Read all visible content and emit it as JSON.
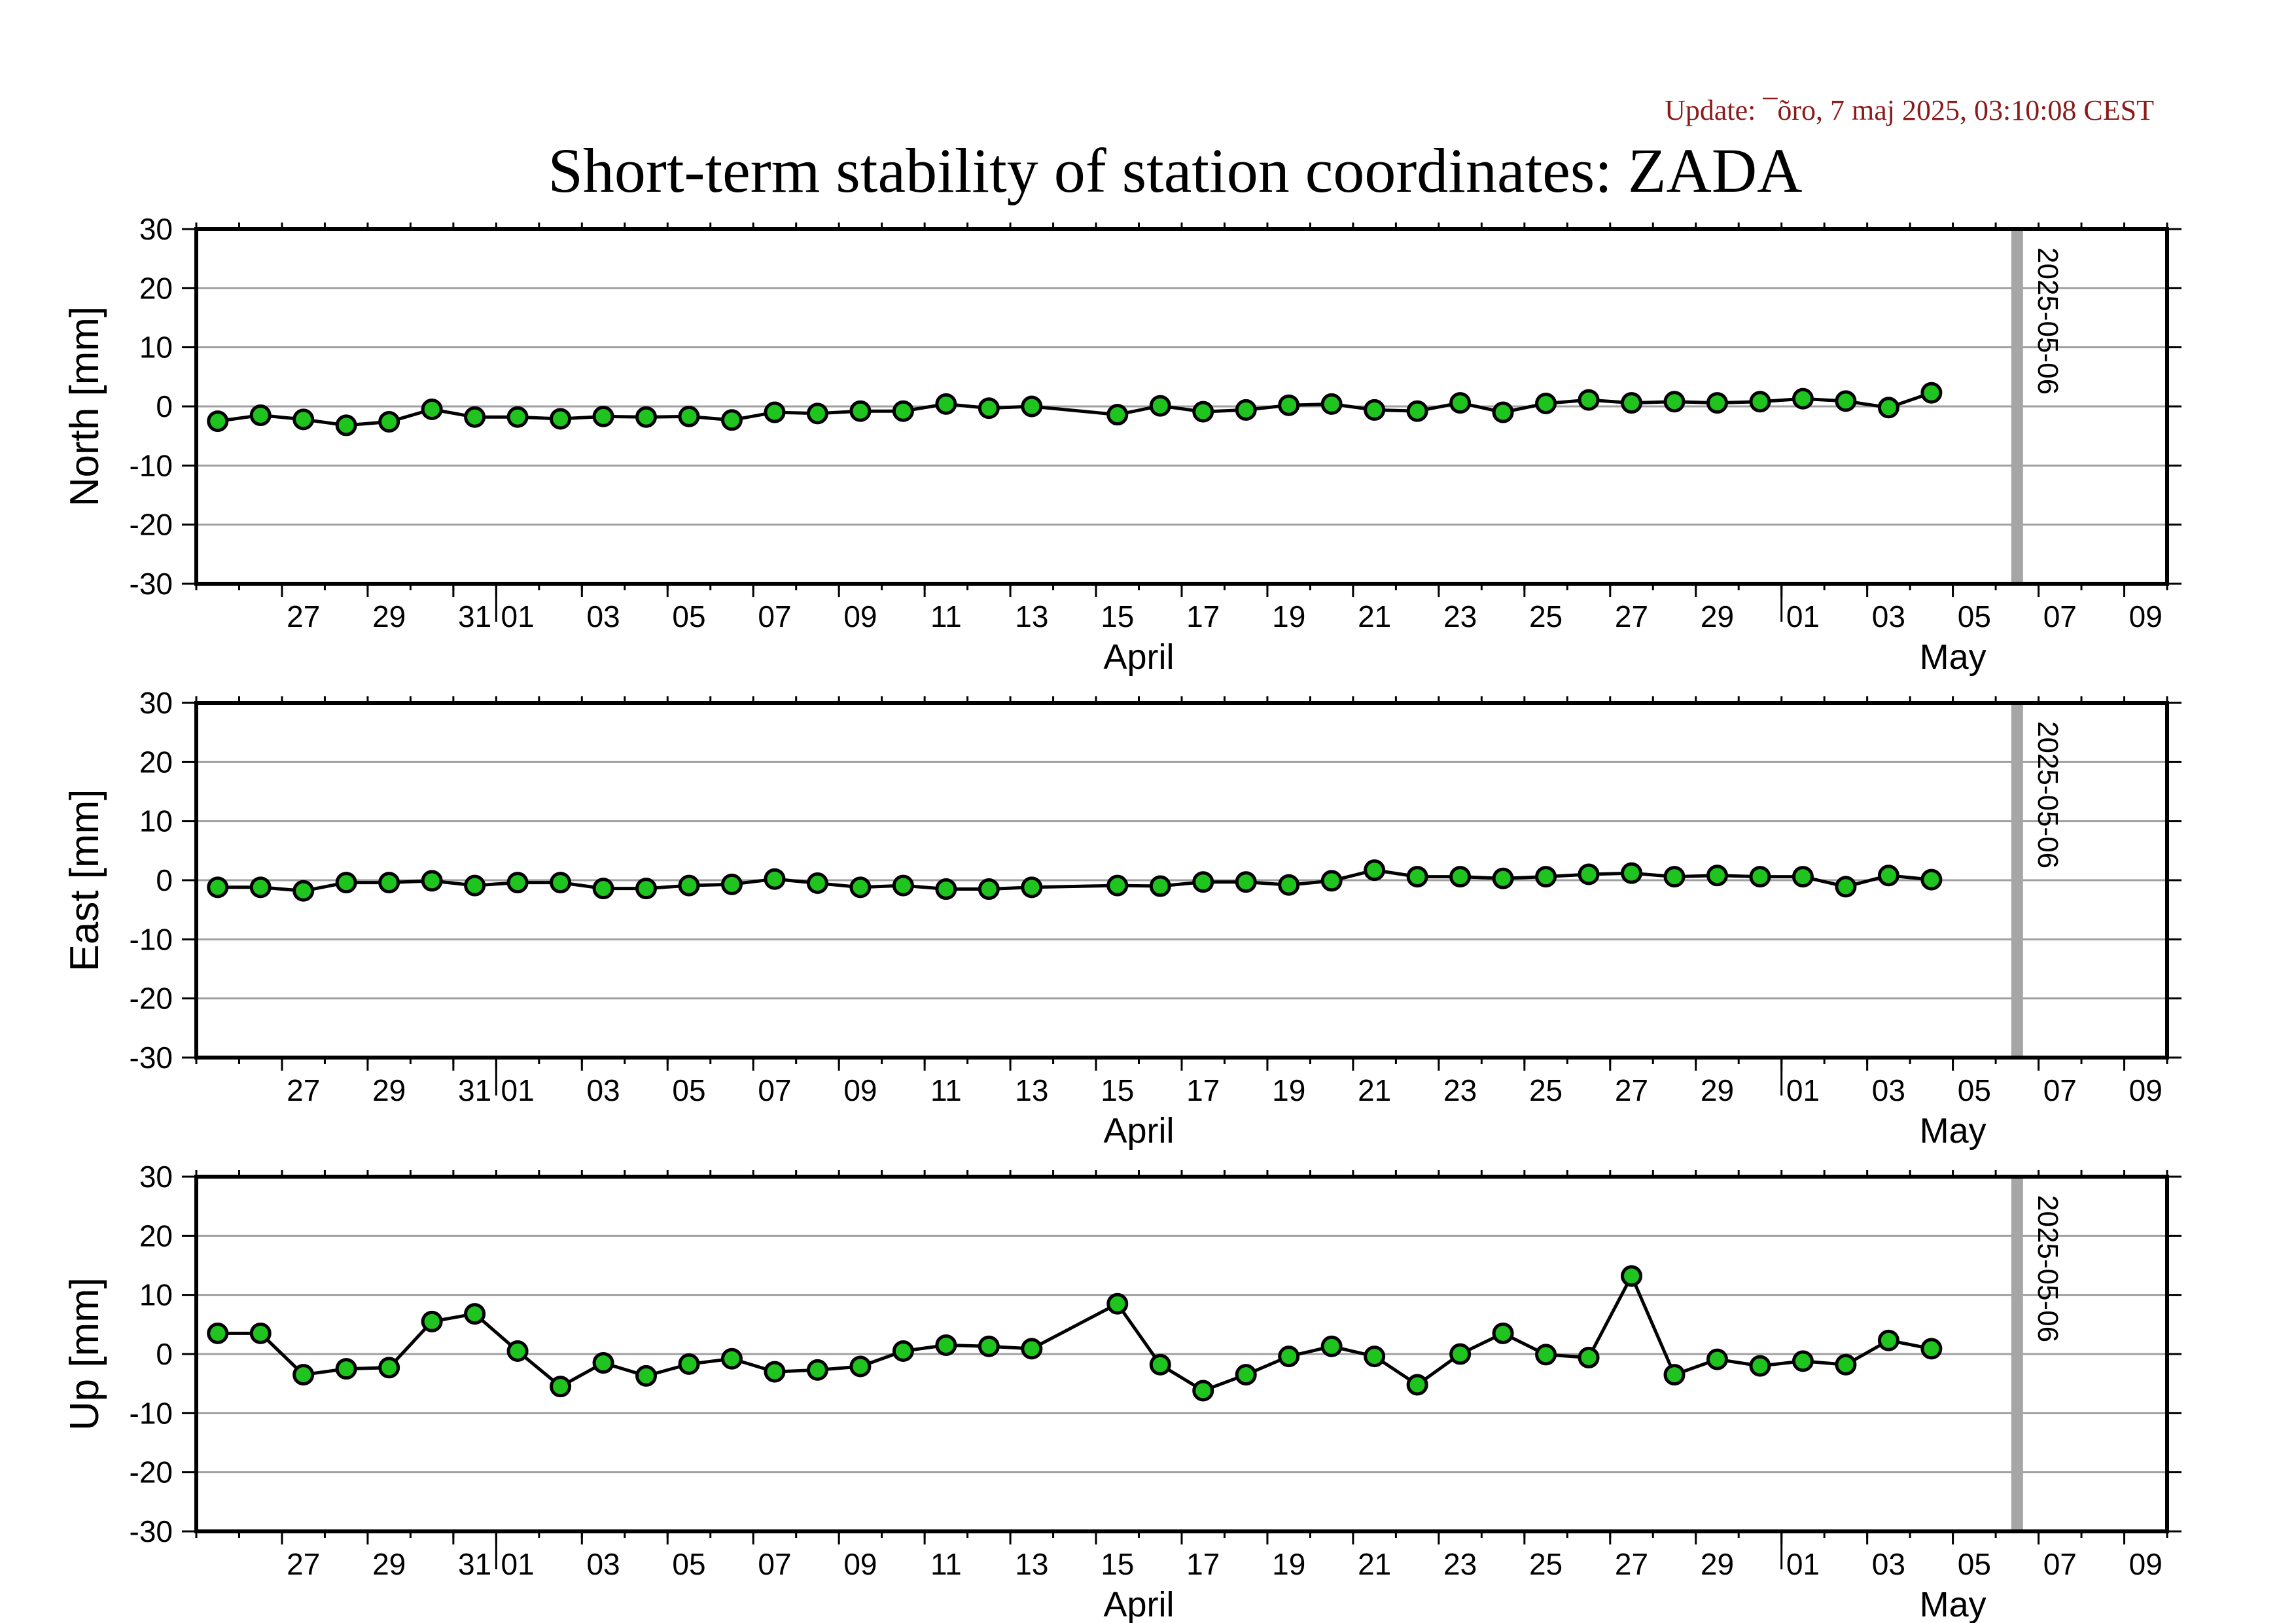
{
  "update_text": "Update: ¯õro, 7 maj 2025, 03:10:08 CEST",
  "title": "Short-term stability of station coordinates: ZADA",
  "colors": {
    "marker_fill": "#1fc41f",
    "marker_stroke": "#000000",
    "line": "#000000",
    "grid": "#a0a0a0",
    "current_date_bar": "#a6a6a6",
    "update_text": "#8b1a1a"
  },
  "chart_data": [
    {
      "type": "line",
      "ylabel": "North [mm]",
      "ylim": [
        -30,
        30
      ],
      "yticks": [
        30,
        20,
        10,
        0,
        -10,
        -20,
        -30
      ],
      "grid": true,
      "xlim": [
        "2025-03-25",
        "2025-05-10"
      ],
      "x_tick_labels": [
        "27",
        "29",
        "31",
        "01",
        "03",
        "05",
        "07",
        "09",
        "11",
        "13",
        "15",
        "17",
        "19",
        "21",
        "23",
        "25",
        "27",
        "29",
        "01",
        "03",
        "05",
        "07",
        "09"
      ],
      "month_labels": [
        "April",
        "May"
      ],
      "marker_annotation": "2025-05-06",
      "x": [
        "2025-03-25",
        "2025-03-26",
        "2025-03-27",
        "2025-03-28",
        "2025-03-29",
        "2025-03-30",
        "2025-03-31",
        "2025-04-01",
        "2025-04-02",
        "2025-04-03",
        "2025-04-04",
        "2025-04-05",
        "2025-04-06",
        "2025-04-07",
        "2025-04-08",
        "2025-04-09",
        "2025-04-10",
        "2025-04-11",
        "2025-04-12",
        "2025-04-13",
        "2025-04-15",
        "2025-04-16",
        "2025-04-17",
        "2025-04-18",
        "2025-04-19",
        "2025-04-20",
        "2025-04-21",
        "2025-04-22",
        "2025-04-23",
        "2025-04-24",
        "2025-04-25",
        "2025-04-26",
        "2025-04-27",
        "2025-04-28",
        "2025-04-29",
        "2025-04-30",
        "2025-05-01",
        "2025-05-02",
        "2025-05-03",
        "2025-05-04"
      ],
      "values": [
        -2.5,
        -1.5,
        -2.2,
        -3.2,
        -2.6,
        -0.5,
        -1.8,
        -1.8,
        -2.1,
        -1.7,
        -1.8,
        -1.7,
        -2.3,
        -1.0,
        -1.2,
        -0.8,
        -0.8,
        0.4,
        -0.3,
        0.0,
        -1.4,
        0.1,
        -0.9,
        -0.6,
        0.2,
        0.4,
        -0.6,
        -0.8,
        0.6,
        -1.0,
        0.5,
        1.1,
        0.6,
        0.8,
        0.6,
        0.8,
        1.3,
        0.9,
        -0.2,
        2.3
      ]
    },
    {
      "type": "line",
      "ylabel": "East [mm]",
      "ylim": [
        -30,
        30
      ],
      "yticks": [
        30,
        20,
        10,
        0,
        -10,
        -20,
        -30
      ],
      "grid": true,
      "xlim": [
        "2025-03-25",
        "2025-05-10"
      ],
      "x_tick_labels": [
        "27",
        "29",
        "31",
        "01",
        "03",
        "05",
        "07",
        "09",
        "11",
        "13",
        "15",
        "17",
        "19",
        "21",
        "23",
        "25",
        "27",
        "29",
        "01",
        "03",
        "05",
        "07",
        "09"
      ],
      "month_labels": [
        "April",
        "May"
      ],
      "marker_annotation": "2025-05-06",
      "x": [
        "2025-03-25",
        "2025-03-26",
        "2025-03-27",
        "2025-03-28",
        "2025-03-29",
        "2025-03-30",
        "2025-03-31",
        "2025-04-01",
        "2025-04-02",
        "2025-04-03",
        "2025-04-04",
        "2025-04-05",
        "2025-04-06",
        "2025-04-07",
        "2025-04-08",
        "2025-04-09",
        "2025-04-10",
        "2025-04-11",
        "2025-04-12",
        "2025-04-13",
        "2025-04-15",
        "2025-04-16",
        "2025-04-17",
        "2025-04-18",
        "2025-04-19",
        "2025-04-20",
        "2025-04-21",
        "2025-04-22",
        "2025-04-23",
        "2025-04-24",
        "2025-04-25",
        "2025-04-26",
        "2025-04-27",
        "2025-04-28",
        "2025-04-29",
        "2025-04-30",
        "2025-05-01",
        "2025-05-02",
        "2025-05-03",
        "2025-05-04"
      ],
      "values": [
        -1.2,
        -1.2,
        -1.8,
        -0.4,
        -0.4,
        -0.1,
        -0.9,
        -0.4,
        -0.4,
        -1.4,
        -1.4,
        -0.9,
        -0.7,
        0.2,
        -0.5,
        -1.2,
        -0.9,
        -1.5,
        -1.5,
        -1.2,
        -0.9,
        -1.0,
        -0.3,
        -0.3,
        -0.8,
        -0.1,
        1.7,
        0.6,
        0.6,
        0.3,
        0.6,
        1.0,
        1.2,
        0.6,
        0.8,
        0.6,
        0.6,
        -1.1,
        0.8,
        0.1
      ]
    },
    {
      "type": "line",
      "ylabel": "Up [mm]",
      "ylim": [
        -30,
        30
      ],
      "yticks": [
        30,
        20,
        10,
        0,
        -10,
        -20,
        -30
      ],
      "grid": true,
      "xlim": [
        "2025-03-25",
        "2025-05-10"
      ],
      "x_tick_labels": [
        "27",
        "29",
        "31",
        "01",
        "03",
        "05",
        "07",
        "09",
        "11",
        "13",
        "15",
        "17",
        "19",
        "21",
        "23",
        "25",
        "27",
        "29",
        "01",
        "03",
        "05",
        "07",
        "09"
      ],
      "month_labels": [
        "April",
        "May"
      ],
      "marker_annotation": "2025-05-06",
      "x": [
        "2025-03-25",
        "2025-03-26",
        "2025-03-27",
        "2025-03-28",
        "2025-03-29",
        "2025-03-30",
        "2025-03-31",
        "2025-04-01",
        "2025-04-02",
        "2025-04-03",
        "2025-04-04",
        "2025-04-05",
        "2025-04-06",
        "2025-04-07",
        "2025-04-08",
        "2025-04-09",
        "2025-04-10",
        "2025-04-11",
        "2025-04-12",
        "2025-04-13",
        "2025-04-15",
        "2025-04-16",
        "2025-04-17",
        "2025-04-18",
        "2025-04-19",
        "2025-04-20",
        "2025-04-21",
        "2025-04-22",
        "2025-04-23",
        "2025-04-24",
        "2025-04-25",
        "2025-04-26",
        "2025-04-27",
        "2025-04-28",
        "2025-04-29",
        "2025-04-30",
        "2025-05-01",
        "2025-05-02",
        "2025-05-03",
        "2025-05-04"
      ],
      "values": [
        3.5,
        3.5,
        -3.5,
        -2.5,
        -2.3,
        5.5,
        6.8,
        0.5,
        -5.5,
        -1.5,
        -3.7,
        -1.7,
        -0.8,
        -3.0,
        -2.7,
        -2.1,
        0.5,
        1.5,
        1.3,
        0.9,
        8.5,
        -1.8,
        -6.2,
        -3.5,
        -0.4,
        1.3,
        -0.4,
        -5.2,
        0.0,
        3.5,
        -0.1,
        -0.6,
        13.2,
        -3.5,
        -0.9,
        -2.0,
        -1.2,
        -1.8,
        2.3,
        0.9
      ]
    }
  ]
}
